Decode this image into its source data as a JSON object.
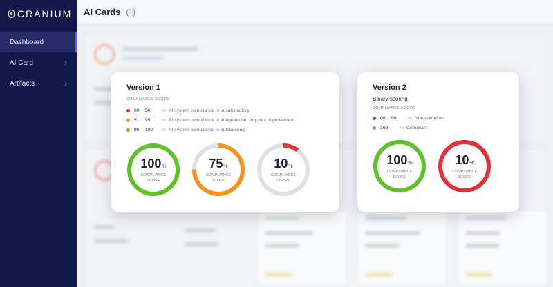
{
  "sidebar": {
    "logo": "CRANIUM",
    "items": [
      {
        "label": "Dashboard",
        "chevron": ""
      },
      {
        "label": "AI Card",
        "chevron": "›"
      },
      {
        "label": "Artifacts",
        "chevron": "›"
      }
    ]
  },
  "header": {
    "title": "AI Cards",
    "count": "(1)"
  },
  "colors": {
    "green": "#5fc22c",
    "orange": "#f49420",
    "red": "#e2323a",
    "track": "#dfe0e3"
  },
  "version1": {
    "title": "Version 1",
    "score_label": "COMPLIANCE SCORE",
    "legend": [
      {
        "min": "00",
        "sep": "-",
        "max": "50",
        "pct": "%",
        "text": "AI system compliance is unsatisfactory.",
        "color": "#e2323a"
      },
      {
        "min": "51",
        "sep": "-",
        "max": "95",
        "pct": "%",
        "text": "AI system compliance is adequate but requires improvement.",
        "color": "#f49420"
      },
      {
        "min": "96",
        "sep": "-",
        "max": "100",
        "pct": "%",
        "text": "AI system compliance is outstanding.",
        "color": "#5fc22c"
      }
    ],
    "gauges": [
      {
        "value": "100",
        "unit": "%",
        "caption": "COMPLIANCE SCORE",
        "fraction": 1.0,
        "color": "#5fc22c"
      },
      {
        "value": "75",
        "unit": "%",
        "caption": "COMPLIANCE SCORE",
        "fraction": 0.75,
        "color": "#f49420"
      },
      {
        "value": "10",
        "unit": "%",
        "caption": "COMPLIANCE SCORE",
        "fraction": 0.1,
        "color": "#e2323a"
      }
    ]
  },
  "version2": {
    "title": "Version 2",
    "subtitle": "Binary scoring",
    "score_label": "COMPLIANCE SCORE",
    "legend": [
      {
        "min": "00",
        "sep": "-",
        "max": "99",
        "pct": "%",
        "text": "Non-compliant",
        "color": "#e2323a"
      },
      {
        "min": "100",
        "sep": "",
        "max": "",
        "pct": "%",
        "text": "Compliant",
        "color": "#5fc22c"
      }
    ],
    "gauges": [
      {
        "value": "100",
        "unit": "%",
        "caption": "COMPLIANCE SCORE",
        "fraction": 1.0,
        "color": "#5fc22c"
      },
      {
        "value": "10",
        "unit": "%",
        "caption": "COMPLIANCE SCORE",
        "fraction": 1.0,
        "color": "#e2323a"
      }
    ]
  }
}
